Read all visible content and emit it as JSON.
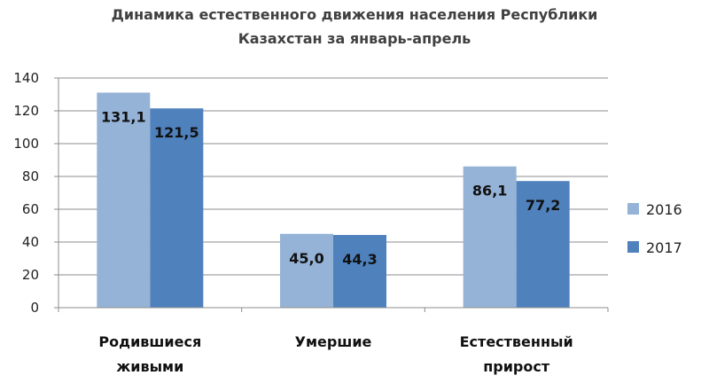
{
  "chart_data": {
    "type": "bar",
    "title_lines": [
      "Динамика естественного движения населения Республики",
      "Казахстан за январь-апрель"
    ],
    "categories": [
      [
        "Родившиеся",
        "живыми"
      ],
      [
        "Умершие"
      ],
      [
        "Естественный",
        "прирост"
      ]
    ],
    "series": [
      {
        "name": "2016",
        "color": "#95B3D7",
        "values": [
          131.1,
          45.0,
          86.1
        ],
        "labels": [
          "131,1",
          "45,0",
          "86,1"
        ]
      },
      {
        "name": "2017",
        "color": "#4F81BD",
        "values": [
          121.5,
          44.3,
          77.2
        ],
        "labels": [
          "121,5",
          "44,3",
          "77,2"
        ]
      }
    ],
    "ylim": [
      0,
      140
    ],
    "yticks": [
      0,
      20,
      40,
      60,
      80,
      100,
      120,
      140
    ],
    "grid": true,
    "legend_position": "right"
  }
}
